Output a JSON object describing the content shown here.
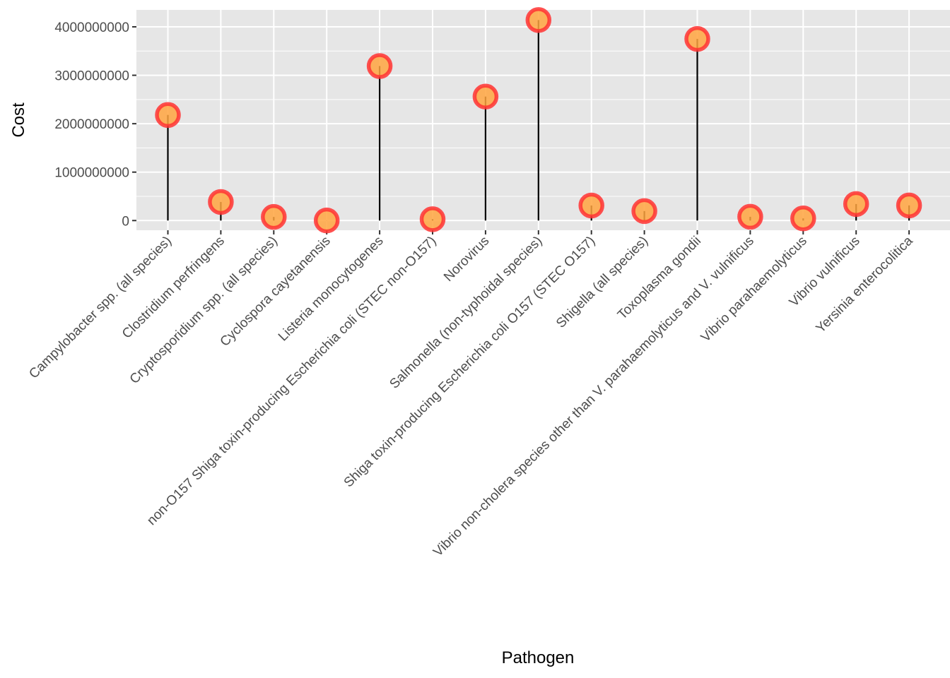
{
  "chart_data": {
    "type": "lollipop",
    "xlabel": "Pathogen",
    "ylabel": "Cost",
    "categories": [
      "Campylobacter spp. (all species)",
      "Clostridium perfringens",
      "Cryptosporidium spp. (all species)",
      "Cyclospora cayetanensis",
      "Listeria monocytogenes",
      "non-O157 Shiga toxin-producing Escherichia coli (STEC non-O157)",
      "Norovirus",
      "Salmonella (non-typhoidal species)",
      "Shiga toxin-producing Escherichia coli O157 (STEC O157)",
      "Shigella (all species)",
      "Toxoplasma gondii",
      "Vibrio non-cholera species other than V. parahaemolyticus and V. vulnificus",
      "Vibrio parahaemolyticus",
      "Vibrio vulnificus",
      "Yersinia enterocolitica"
    ],
    "values": [
      2180000000,
      384000000,
      75000000,
      2000000,
      3190000000,
      28000000,
      2560000000,
      4140000000,
      311000000,
      196000000,
      3750000000,
      78000000,
      45000000,
      342000000,
      313000000
    ],
    "yticks": [
      0,
      1000000000,
      2000000000,
      3000000000,
      4000000000
    ],
    "ytick_labels": [
      "0",
      "1000000000",
      "2000000000",
      "3000000000",
      "4000000000"
    ],
    "ylim": [
      -200000000,
      4350000000
    ],
    "grid": true,
    "panel_color": "#e6e6e6",
    "grid_color": "#ffffff",
    "stem_color": "#000000",
    "point_fill": "#ffa53f",
    "point_stroke": "#ff3333"
  }
}
